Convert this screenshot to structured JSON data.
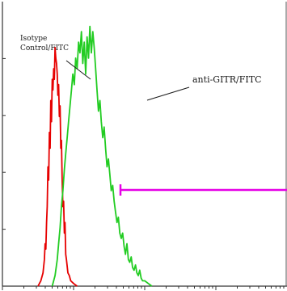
{
  "chart_data": {
    "type": "histogram",
    "x_log_scale": true,
    "grid": false,
    "annotations": [
      {
        "name": "isotype-label",
        "lines": [
          "Isotype",
          "Control/FITC"
        ],
        "color": "#1a1a1a"
      },
      {
        "name": "anti-gitr-label",
        "lines": [
          "anti-GITR/FITC"
        ],
        "color": "#1a1a1a"
      }
    ],
    "gate": {
      "color": "#e600e6"
    },
    "series": [
      {
        "name": "Isotype Control/FITC",
        "color": "#e60000",
        "points": [
          [
            0.5,
            0.0
          ],
          [
            0.54,
            0.02
          ],
          [
            0.57,
            0.05
          ],
          [
            0.59,
            0.1
          ],
          [
            0.6,
            0.16
          ],
          [
            0.61,
            0.14
          ],
          [
            0.62,
            0.24
          ],
          [
            0.63,
            0.3
          ],
          [
            0.64,
            0.45
          ],
          [
            0.65,
            0.4
          ],
          [
            0.66,
            0.58
          ],
          [
            0.67,
            0.52
          ],
          [
            0.68,
            0.7
          ],
          [
            0.69,
            0.62
          ],
          [
            0.7,
            0.78
          ],
          [
            0.71,
            0.74
          ],
          [
            0.72,
            0.82
          ],
          [
            0.73,
            0.78
          ],
          [
            0.74,
            0.9
          ],
          [
            0.75,
            0.86
          ],
          [
            0.76,
            0.84
          ],
          [
            0.77,
            0.8
          ],
          [
            0.78,
            0.72
          ],
          [
            0.79,
            0.76
          ],
          [
            0.8,
            0.64
          ],
          [
            0.81,
            0.68
          ],
          [
            0.82,
            0.52
          ],
          [
            0.83,
            0.55
          ],
          [
            0.84,
            0.4
          ],
          [
            0.85,
            0.3
          ],
          [
            0.86,
            0.32
          ],
          [
            0.87,
            0.2
          ],
          [
            0.88,
            0.24
          ],
          [
            0.89,
            0.12
          ],
          [
            0.9,
            0.1
          ],
          [
            0.92,
            0.05
          ],
          [
            0.94,
            0.04
          ],
          [
            0.96,
            0.02
          ],
          [
            1.0,
            0.01
          ],
          [
            1.05,
            0.0
          ]
        ]
      },
      {
        "name": "anti-GITR/FITC",
        "color": "#22cc22",
        "points": [
          [
            0.7,
            0.0
          ],
          [
            0.74,
            0.04
          ],
          [
            0.77,
            0.1
          ],
          [
            0.79,
            0.16
          ],
          [
            0.81,
            0.22
          ],
          [
            0.83,
            0.3
          ],
          [
            0.85,
            0.36
          ],
          [
            0.87,
            0.44
          ],
          [
            0.89,
            0.5
          ],
          [
            0.91,
            0.56
          ],
          [
            0.93,
            0.62
          ],
          [
            0.95,
            0.68
          ],
          [
            0.97,
            0.74
          ],
          [
            0.99,
            0.8
          ],
          [
            1.01,
            0.76
          ],
          [
            1.03,
            0.86
          ],
          [
            1.05,
            0.82
          ],
          [
            1.07,
            0.92
          ],
          [
            1.09,
            0.88
          ],
          [
            1.11,
            0.96
          ],
          [
            1.13,
            0.84
          ],
          [
            1.15,
            0.92
          ],
          [
            1.17,
            0.8
          ],
          [
            1.19,
            0.94
          ],
          [
            1.21,
            0.86
          ],
          [
            1.23,
            0.98
          ],
          [
            1.25,
            0.88
          ],
          [
            1.27,
            0.96
          ],
          [
            1.29,
            0.9
          ],
          [
            1.31,
            0.82
          ],
          [
            1.33,
            0.74
          ],
          [
            1.35,
            0.66
          ],
          [
            1.37,
            0.7
          ],
          [
            1.39,
            0.62
          ],
          [
            1.41,
            0.56
          ],
          [
            1.43,
            0.6
          ],
          [
            1.45,
            0.52
          ],
          [
            1.47,
            0.45
          ],
          [
            1.49,
            0.48
          ],
          [
            1.51,
            0.42
          ],
          [
            1.53,
            0.36
          ],
          [
            1.55,
            0.38
          ],
          [
            1.57,
            0.32
          ],
          [
            1.59,
            0.28
          ],
          [
            1.61,
            0.24
          ],
          [
            1.63,
            0.26
          ],
          [
            1.65,
            0.2
          ],
          [
            1.67,
            0.18
          ],
          [
            1.69,
            0.2
          ],
          [
            1.71,
            0.15
          ],
          [
            1.73,
            0.12
          ],
          [
            1.75,
            0.16
          ],
          [
            1.77,
            0.1
          ],
          [
            1.79,
            0.09
          ],
          [
            1.81,
            0.11
          ],
          [
            1.83,
            0.07
          ],
          [
            1.85,
            0.06
          ],
          [
            1.87,
            0.08
          ],
          [
            1.89,
            0.05
          ],
          [
            1.91,
            0.04
          ],
          [
            1.93,
            0.06
          ],
          [
            1.95,
            0.03
          ],
          [
            1.97,
            0.02
          ],
          [
            2.0,
            0.02
          ],
          [
            2.05,
            0.01
          ],
          [
            2.1,
            0.0
          ]
        ]
      }
    ]
  }
}
